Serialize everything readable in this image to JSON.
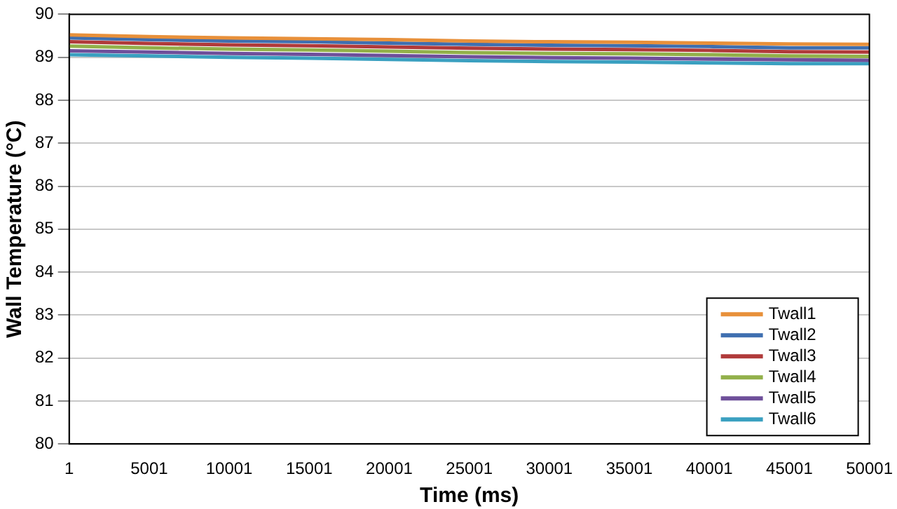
{
  "chart_data": {
    "type": "line",
    "xlabel": "Time (ms)",
    "ylabel": "Wall Temperature (°C)",
    "x": [
      1,
      5001,
      10001,
      15001,
      20001,
      25001,
      30001,
      35001,
      40001,
      45001,
      50001
    ],
    "xlim": [
      1,
      50001
    ],
    "xticks": [
      1,
      5001,
      10001,
      15001,
      20001,
      25001,
      30001,
      35001,
      40001,
      45001,
      50001
    ],
    "ylim": [
      80,
      90
    ],
    "yticks": [
      80,
      81,
      82,
      83,
      84,
      85,
      86,
      87,
      88,
      89,
      90
    ],
    "grid": "y",
    "legend": "bottom right",
    "marker": "none",
    "line_style": "solid",
    "series": [
      {
        "name": "Twall1",
        "color": "#e8903a",
        "values": [
          89.52,
          89.48,
          89.45,
          89.43,
          89.41,
          89.38,
          89.36,
          89.35,
          89.33,
          89.31,
          89.3
        ]
      },
      {
        "name": "Twall2",
        "color": "#3f6fb0",
        "values": [
          89.45,
          89.41,
          89.38,
          89.36,
          89.33,
          89.3,
          89.28,
          89.27,
          89.25,
          89.22,
          89.22
        ]
      },
      {
        "name": "Twall3",
        "color": "#b03a3a",
        "values": [
          89.36,
          89.32,
          89.29,
          89.27,
          89.24,
          89.21,
          89.19,
          89.18,
          89.16,
          89.13,
          89.12
        ]
      },
      {
        "name": "Twall4",
        "color": "#92b04a",
        "values": [
          89.26,
          89.22,
          89.19,
          89.17,
          89.14,
          89.11,
          89.09,
          89.08,
          89.06,
          89.03,
          89.02
        ]
      },
      {
        "name": "Twall5",
        "color": "#6e4f9a",
        "values": [
          89.15,
          89.12,
          89.09,
          89.07,
          89.04,
          89.01,
          88.99,
          88.98,
          88.96,
          88.94,
          88.93
        ]
      },
      {
        "name": "Twall6",
        "color": "#3aa0c0",
        "values": [
          89.06,
          89.03,
          89.0,
          88.98,
          88.95,
          88.92,
          88.9,
          88.89,
          88.87,
          88.85,
          88.85
        ]
      }
    ]
  }
}
